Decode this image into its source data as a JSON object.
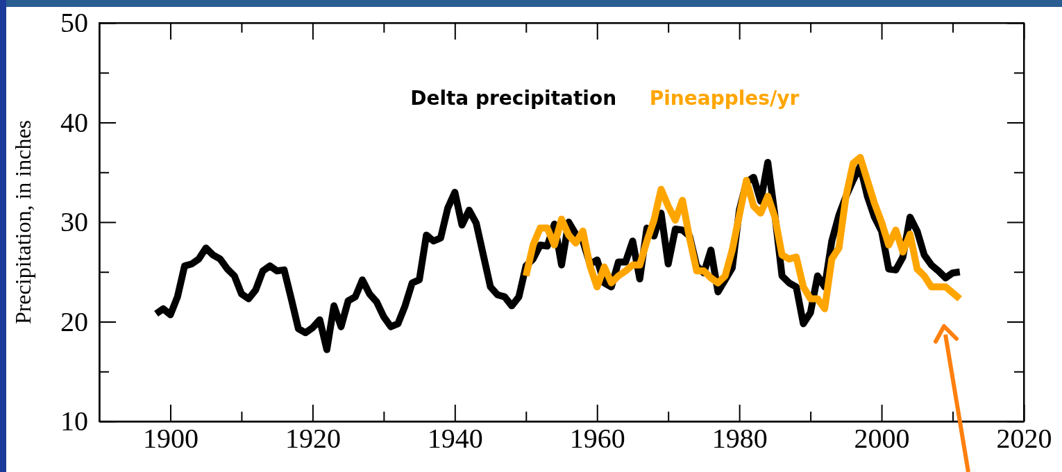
{
  "chart_data": {
    "type": "line",
    "ylabel": "Precipitation, in inches",
    "x": [
      1898,
      1899,
      1900,
      1901,
      1902,
      1903,
      1904,
      1905,
      1906,
      1907,
      1908,
      1909,
      1910,
      1911,
      1912,
      1913,
      1914,
      1915,
      1916,
      1917,
      1918,
      1919,
      1920,
      1921,
      1922,
      1923,
      1924,
      1925,
      1926,
      1927,
      1928,
      1929,
      1930,
      1931,
      1932,
      1933,
      1934,
      1935,
      1936,
      1937,
      1938,
      1939,
      1940,
      1941,
      1942,
      1943,
      1944,
      1945,
      1946,
      1947,
      1948,
      1949,
      1950,
      1951,
      1952,
      1953,
      1954,
      1955,
      1956,
      1957,
      1958,
      1959,
      1960,
      1961,
      1962,
      1963,
      1964,
      1965,
      1966,
      1967,
      1968,
      1969,
      1970,
      1971,
      1972,
      1973,
      1974,
      1975,
      1976,
      1977,
      1978,
      1979,
      1980,
      1981,
      1982,
      1983,
      1984,
      1985,
      1986,
      1987,
      1988,
      1989,
      1990,
      1991,
      1992,
      1993,
      1994,
      1995,
      1996,
      1997,
      1998,
      1999,
      2000,
      2001,
      2002,
      2003,
      2004,
      2005,
      2006,
      2007,
      2008,
      2009,
      2010,
      2011
    ],
    "series": [
      {
        "name": "Delta precipitation",
        "color": "#000000",
        "values": [
          20.8,
          21.3,
          20.7,
          22.5,
          25.6,
          25.8,
          26.3,
          27.4,
          26.7,
          26.3,
          25.3,
          24.6,
          22.8,
          22.3,
          23.2,
          25.1,
          25.6,
          25.1,
          25.2,
          22.3,
          19.3,
          18.9,
          19.4,
          20.2,
          17.2,
          21.6,
          19.5,
          22.1,
          22.5,
          24.2,
          22.8,
          22.0,
          20.5,
          19.5,
          19.8,
          21.6,
          23.9,
          24.2,
          28.7,
          28.1,
          28.4,
          31.4,
          33.0,
          29.7,
          31.2,
          29.9,
          26.7,
          23.5,
          22.7,
          22.5,
          21.6,
          22.5,
          25.6,
          26.3,
          27.7,
          27.6,
          29.8,
          25.7,
          30.0,
          28.8,
          28.1,
          25.8,
          26.2,
          23.9,
          23.5,
          26.0,
          26.0,
          28.1,
          24.3,
          29.4,
          28.6,
          30.9,
          25.8,
          29.3,
          29.2,
          28.6,
          25.6,
          24.9,
          27.2,
          23.0,
          24.2,
          25.4,
          31.2,
          34.0,
          34.5,
          32.1,
          36.0,
          30.7,
          24.6,
          23.9,
          23.5,
          19.8,
          20.9,
          24.6,
          23.5,
          28.1,
          30.7,
          32.6,
          34.2,
          35.6,
          32.6,
          30.5,
          29.1,
          25.3,
          25.2,
          26.5,
          30.5,
          29.1,
          26.7,
          25.7,
          25.1,
          24.4,
          24.9,
          25.0
        ]
      },
      {
        "name": "Pineapples/yr",
        "color": "#ffa500",
        "values": [
          null,
          null,
          null,
          null,
          null,
          null,
          null,
          null,
          null,
          null,
          null,
          null,
          null,
          null,
          null,
          null,
          null,
          null,
          null,
          null,
          null,
          null,
          null,
          null,
          null,
          null,
          null,
          null,
          null,
          null,
          null,
          null,
          null,
          null,
          null,
          null,
          null,
          null,
          null,
          null,
          null,
          null,
          null,
          null,
          null,
          null,
          null,
          null,
          null,
          null,
          null,
          null,
          24.6,
          27.7,
          29.4,
          29.4,
          27.7,
          30.3,
          28.7,
          27.9,
          29.1,
          25.6,
          23.5,
          25.5,
          23.9,
          24.6,
          25.1,
          25.7,
          25.7,
          28.1,
          30.2,
          33.3,
          31.6,
          30.2,
          32.2,
          28.4,
          25.1,
          25.1,
          24.4,
          23.9,
          24.6,
          27.2,
          30.7,
          34.2,
          31.6,
          30.9,
          32.6,
          30.5,
          26.7,
          26.3,
          26.5,
          23.5,
          22.3,
          22.3,
          21.3,
          26.3,
          27.4,
          32.6,
          35.9,
          36.5,
          34.2,
          31.9,
          30.0,
          27.7,
          29.2,
          27.0,
          28.8,
          25.3,
          24.6,
          23.5,
          23.5,
          23.5,
          22.9,
          22.3
        ]
      }
    ],
    "xlim": [
      1890,
      2020
    ],
    "xticks": [
      1900,
      {
        "value": 1910,
        "label": null
      },
      1920,
      {
        "value": 1930,
        "label": null
      },
      1940,
      {
        "value": 1950,
        "label": null
      },
      1960,
      {
        "value": 1970,
        "label": null
      },
      1980,
      {
        "value": 1990,
        "label": null
      },
      2000,
      {
        "value": 2010,
        "label": null
      },
      2020
    ],
    "ylim": [
      10,
      50
    ],
    "yticks": [
      10,
      {
        "value": 15,
        "label": null
      },
      20,
      {
        "value": 25,
        "label": null
      },
      30,
      {
        "value": 35,
        "label": null
      },
      40,
      {
        "value": 45,
        "label": null
      },
      50
    ],
    "legend": "top",
    "marker": "none",
    "line_style": "solid",
    "grid": false
  }
}
